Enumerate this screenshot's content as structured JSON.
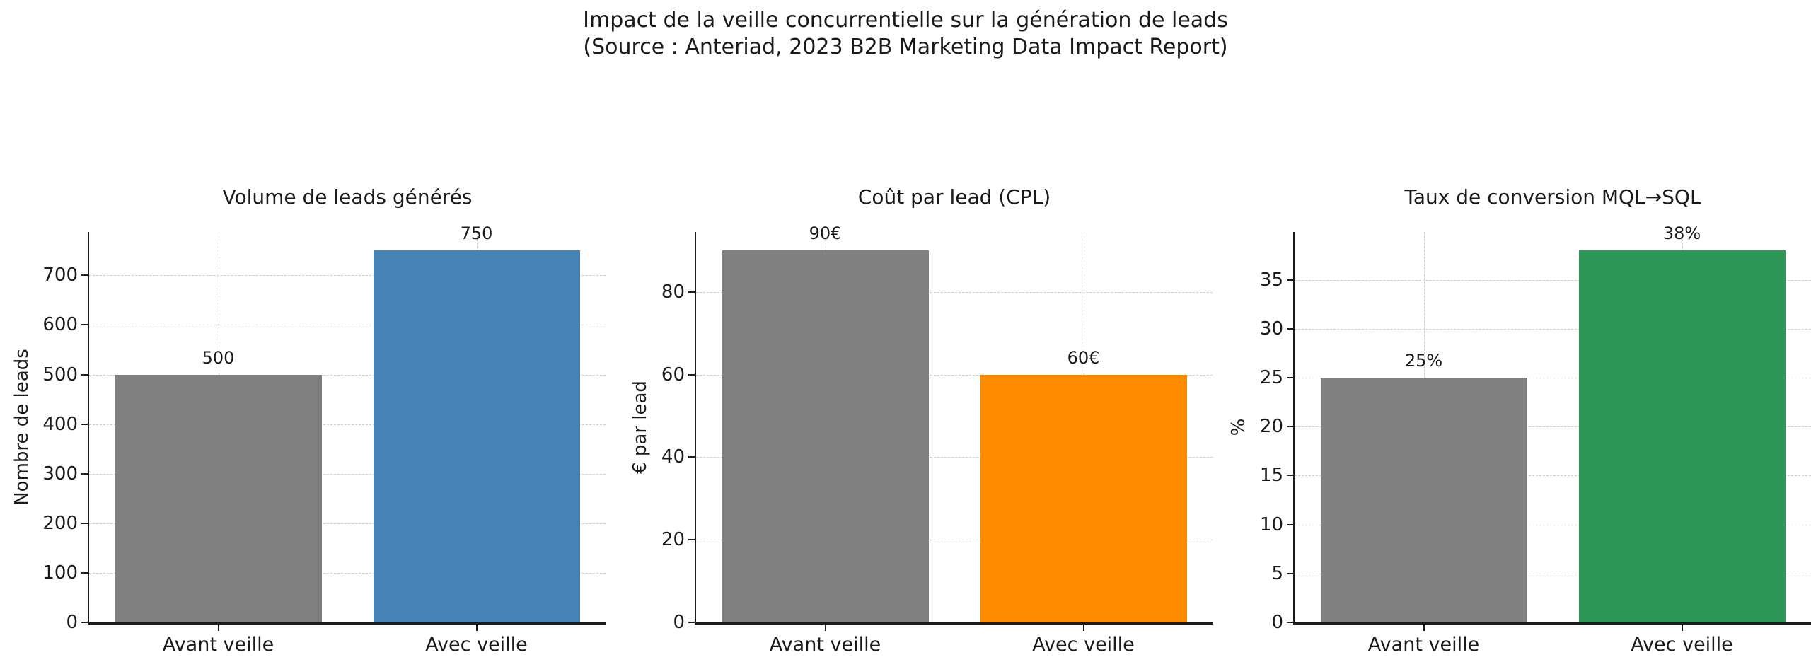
{
  "header": {
    "title_line1": "Impact de la veille concurrentielle sur la génération de leads",
    "title_line2": "(Source : Anteriad, 2023 B2B Marketing Data Impact Report)"
  },
  "colors": {
    "gray_bar": "#808080",
    "blue_bar": "#4682B4",
    "orange_bar": "#FF8C00",
    "green_bar": "#2E9657"
  },
  "chart_data": [
    {
      "type": "bar",
      "title": "Volume de leads générés",
      "ylabel": "Nombre de leads",
      "categories": [
        "Avant veille",
        "Avec veille"
      ],
      "values": [
        500,
        750
      ],
      "value_labels": [
        "500",
        "750"
      ],
      "bar_colors": [
        "#808080",
        "#4682B4"
      ],
      "ylim": [
        0,
        787.5
      ],
      "yticks": [
        0,
        100,
        200,
        300,
        400,
        500,
        600,
        700
      ],
      "grid": "dashed",
      "legend": "none"
    },
    {
      "type": "bar",
      "title": "Coût par lead (CPL)",
      "ylabel": "€ par lead",
      "categories": [
        "Avant veille",
        "Avec veille"
      ],
      "values": [
        90,
        60
      ],
      "value_labels": [
        "90€",
        "60€"
      ],
      "bar_colors": [
        "#808080",
        "#FF8C00"
      ],
      "ylim": [
        0,
        94.5
      ],
      "yticks": [
        0,
        20,
        40,
        60,
        80
      ],
      "grid": "dashed",
      "legend": "none"
    },
    {
      "type": "bar",
      "title": "Taux de conversion MQL→SQL",
      "ylabel": "%",
      "categories": [
        "Avant veille",
        "Avec veille"
      ],
      "values": [
        25,
        38
      ],
      "value_labels": [
        "25%",
        "38%"
      ],
      "bar_colors": [
        "#808080",
        "#2E9657"
      ],
      "ylim": [
        0,
        39.9
      ],
      "yticks": [
        0,
        5,
        10,
        15,
        20,
        25,
        30,
        35
      ],
      "grid": "dashed",
      "legend": "none"
    }
  ]
}
